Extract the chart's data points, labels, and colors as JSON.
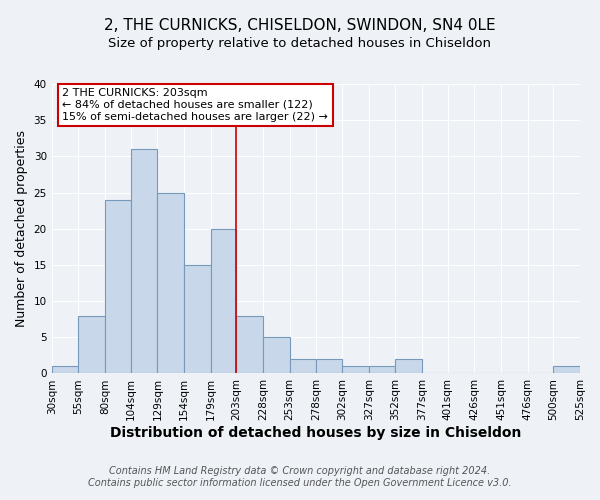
{
  "title": "2, THE CURNICKS, CHISELDON, SWINDON, SN4 0LE",
  "subtitle": "Size of property relative to detached houses in Chiseldon",
  "xlabel": "Distribution of detached houses by size in Chiseldon",
  "ylabel": "Number of detached properties",
  "bin_edges": [
    30,
    55,
    80,
    104,
    129,
    154,
    179,
    203,
    228,
    253,
    278,
    302,
    327,
    352,
    377,
    401,
    426,
    451,
    476,
    500,
    525
  ],
  "bar_heights": [
    1,
    8,
    24,
    31,
    25,
    15,
    20,
    8,
    5,
    2,
    2,
    1,
    1,
    2,
    0,
    0,
    0,
    0,
    0,
    1
  ],
  "bar_color": "#c8d8ea",
  "bar_edge_color": "#7799bb",
  "vline_x": 203,
  "vline_color": "#cc0000",
  "ylim": [
    0,
    40
  ],
  "yticks": [
    0,
    5,
    10,
    15,
    20,
    25,
    30,
    35,
    40
  ],
  "annotation_title": "2 THE CURNICKS: 203sqm",
  "annotation_line1": "← 84% of detached houses are smaller (122)",
  "annotation_line2": "15% of semi-detached houses are larger (22) →",
  "annotation_box_color": "#ffffff",
  "annotation_box_edge": "#cc0000",
  "footer_line1": "Contains HM Land Registry data © Crown copyright and database right 2024.",
  "footer_line2": "Contains public sector information licensed under the Open Government Licence v3.0.",
  "background_color": "#eef2f7",
  "grid_color": "#ffffff",
  "title_fontsize": 11,
  "subtitle_fontsize": 9.5,
  "xlabel_fontsize": 10,
  "ylabel_fontsize": 9,
  "tick_fontsize": 7.5,
  "annotation_fontsize": 8,
  "footer_fontsize": 7
}
